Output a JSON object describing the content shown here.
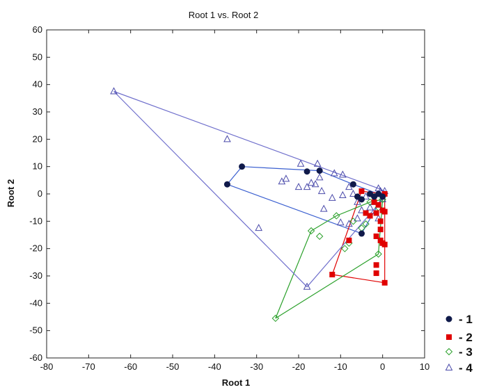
{
  "chart_data": {
    "type": "scatter",
    "title": "Root 1 vs. Root 2",
    "xlabel": "Root 1",
    "ylabel": "Root 2",
    "xlim": [
      -80,
      10
    ],
    "ylim": [
      -60,
      60
    ],
    "xticks": [
      "-80",
      "-70",
      "-60",
      "-50",
      "-40",
      "-30",
      "-20",
      "-10",
      "0",
      "10"
    ],
    "yticks": [
      "-60",
      "-50",
      "-40",
      "-30",
      "-20",
      "-10",
      "0",
      "10",
      "20",
      "30",
      "40",
      "50",
      "60"
    ],
    "grid": false,
    "legend_position": "bottom-right",
    "series": [
      {
        "name": "- 1",
        "marker": "filled-circle",
        "color": "#101a4a",
        "hull_color": "#3a5fd0",
        "points": [
          [
            -37,
            3.5
          ],
          [
            -33.5,
            10
          ],
          [
            -18,
            8.2
          ],
          [
            -15,
            8.5
          ],
          [
            -7,
            3.5
          ],
          [
            -6,
            -1
          ],
          [
            -5,
            -2
          ],
          [
            -5,
            -14.5
          ],
          [
            -3,
            0
          ],
          [
            -2,
            -1
          ],
          [
            -1,
            0
          ],
          [
            0,
            -1
          ]
        ],
        "hull": [
          [
            -37,
            3.5
          ],
          [
            -33.5,
            10
          ],
          [
            -15,
            8.5
          ],
          [
            -7,
            3.5
          ],
          [
            -1,
            0
          ],
          [
            0,
            -1
          ],
          [
            -5,
            -14.5
          ],
          [
            -37,
            3.5
          ]
        ]
      },
      {
        "name": "- 2",
        "marker": "filled-square",
        "color": "#e00000",
        "hull_color": "#e00000",
        "points": [
          [
            -12,
            -29.5
          ],
          [
            -8,
            -17
          ],
          [
            -5,
            1
          ],
          [
            -4,
            -7
          ],
          [
            -3,
            -8
          ],
          [
            -2,
            -3
          ],
          [
            -1.5,
            -7
          ],
          [
            -1.5,
            -15.5
          ],
          [
            -1.5,
            -26
          ],
          [
            -1.5,
            -29
          ],
          [
            -1,
            -4
          ],
          [
            -0.5,
            -10
          ],
          [
            -0.5,
            -13
          ],
          [
            -0.5,
            -17
          ],
          [
            0,
            -18
          ],
          [
            0,
            -6
          ],
          [
            0.5,
            -6.5
          ],
          [
            0.5,
            -18.5
          ],
          [
            0.5,
            -32.5
          ],
          [
            0.5,
            0
          ]
        ],
        "hull": [
          [
            -12,
            -29.5
          ],
          [
            -5,
            1
          ],
          [
            0.5,
            0
          ],
          [
            0.5,
            -32.5
          ],
          [
            -12,
            -29.5
          ]
        ]
      },
      {
        "name": "- 3",
        "marker": "open-diamond",
        "color": "#2aa02a",
        "hull_color": "#2aa02a",
        "points": [
          [
            -25.5,
            -45.5
          ],
          [
            -17,
            -13.5
          ],
          [
            -15,
            -15.5
          ],
          [
            -11,
            -8
          ],
          [
            -9,
            -20
          ],
          [
            -8,
            -18
          ],
          [
            -7,
            -10
          ],
          [
            -5,
            -12.5
          ],
          [
            -4,
            -11
          ],
          [
            -3,
            -3
          ],
          [
            -2,
            -1
          ],
          [
            -1,
            -5
          ],
          [
            -1,
            -22
          ],
          [
            0,
            -2
          ]
        ],
        "hull": [
          [
            -25.5,
            -45.5
          ],
          [
            -17,
            -13.5
          ],
          [
            -11,
            -8
          ],
          [
            -3,
            -3
          ],
          [
            0,
            -2
          ],
          [
            -1,
            -22
          ],
          [
            -25.5,
            -45.5
          ]
        ]
      },
      {
        "name": "- 4",
        "marker": "open-triangle",
        "color": "#4a4aaa",
        "hull_color": "#6f6fcc",
        "points": [
          [
            -64,
            37.5
          ],
          [
            -37,
            20
          ],
          [
            -29.5,
            -12.5
          ],
          [
            -24,
            4.5
          ],
          [
            -23,
            5.5
          ],
          [
            -20,
            2.5
          ],
          [
            -19.5,
            11
          ],
          [
            -18,
            -34
          ],
          [
            -18,
            2.5
          ],
          [
            -17,
            4
          ],
          [
            -16,
            3.5
          ],
          [
            -15.5,
            11
          ],
          [
            -15,
            6
          ],
          [
            -14.5,
            1
          ],
          [
            -14,
            -5.5
          ],
          [
            -12,
            -1.5
          ],
          [
            -11.5,
            7.5
          ],
          [
            -10,
            -10.5
          ],
          [
            -9.5,
            7
          ],
          [
            -9.5,
            -0.5
          ],
          [
            -8,
            2.5
          ],
          [
            -8,
            -11
          ],
          [
            -7,
            0
          ],
          [
            -6,
            -3
          ],
          [
            -6,
            -9
          ],
          [
            -5,
            -6
          ],
          [
            -4,
            -1
          ],
          [
            -3,
            -5
          ],
          [
            -2,
            -3
          ],
          [
            -1,
            2
          ],
          [
            -1,
            -9
          ],
          [
            -0.5,
            1
          ],
          [
            0,
            -2
          ],
          [
            0.5,
            1
          ]
        ],
        "hull": [
          [
            -64,
            37.5
          ],
          [
            -18,
            -34
          ],
          [
            0,
            -2
          ],
          [
            0.5,
            1
          ],
          [
            -1,
            2
          ],
          [
            -64,
            37.5
          ]
        ]
      }
    ]
  }
}
